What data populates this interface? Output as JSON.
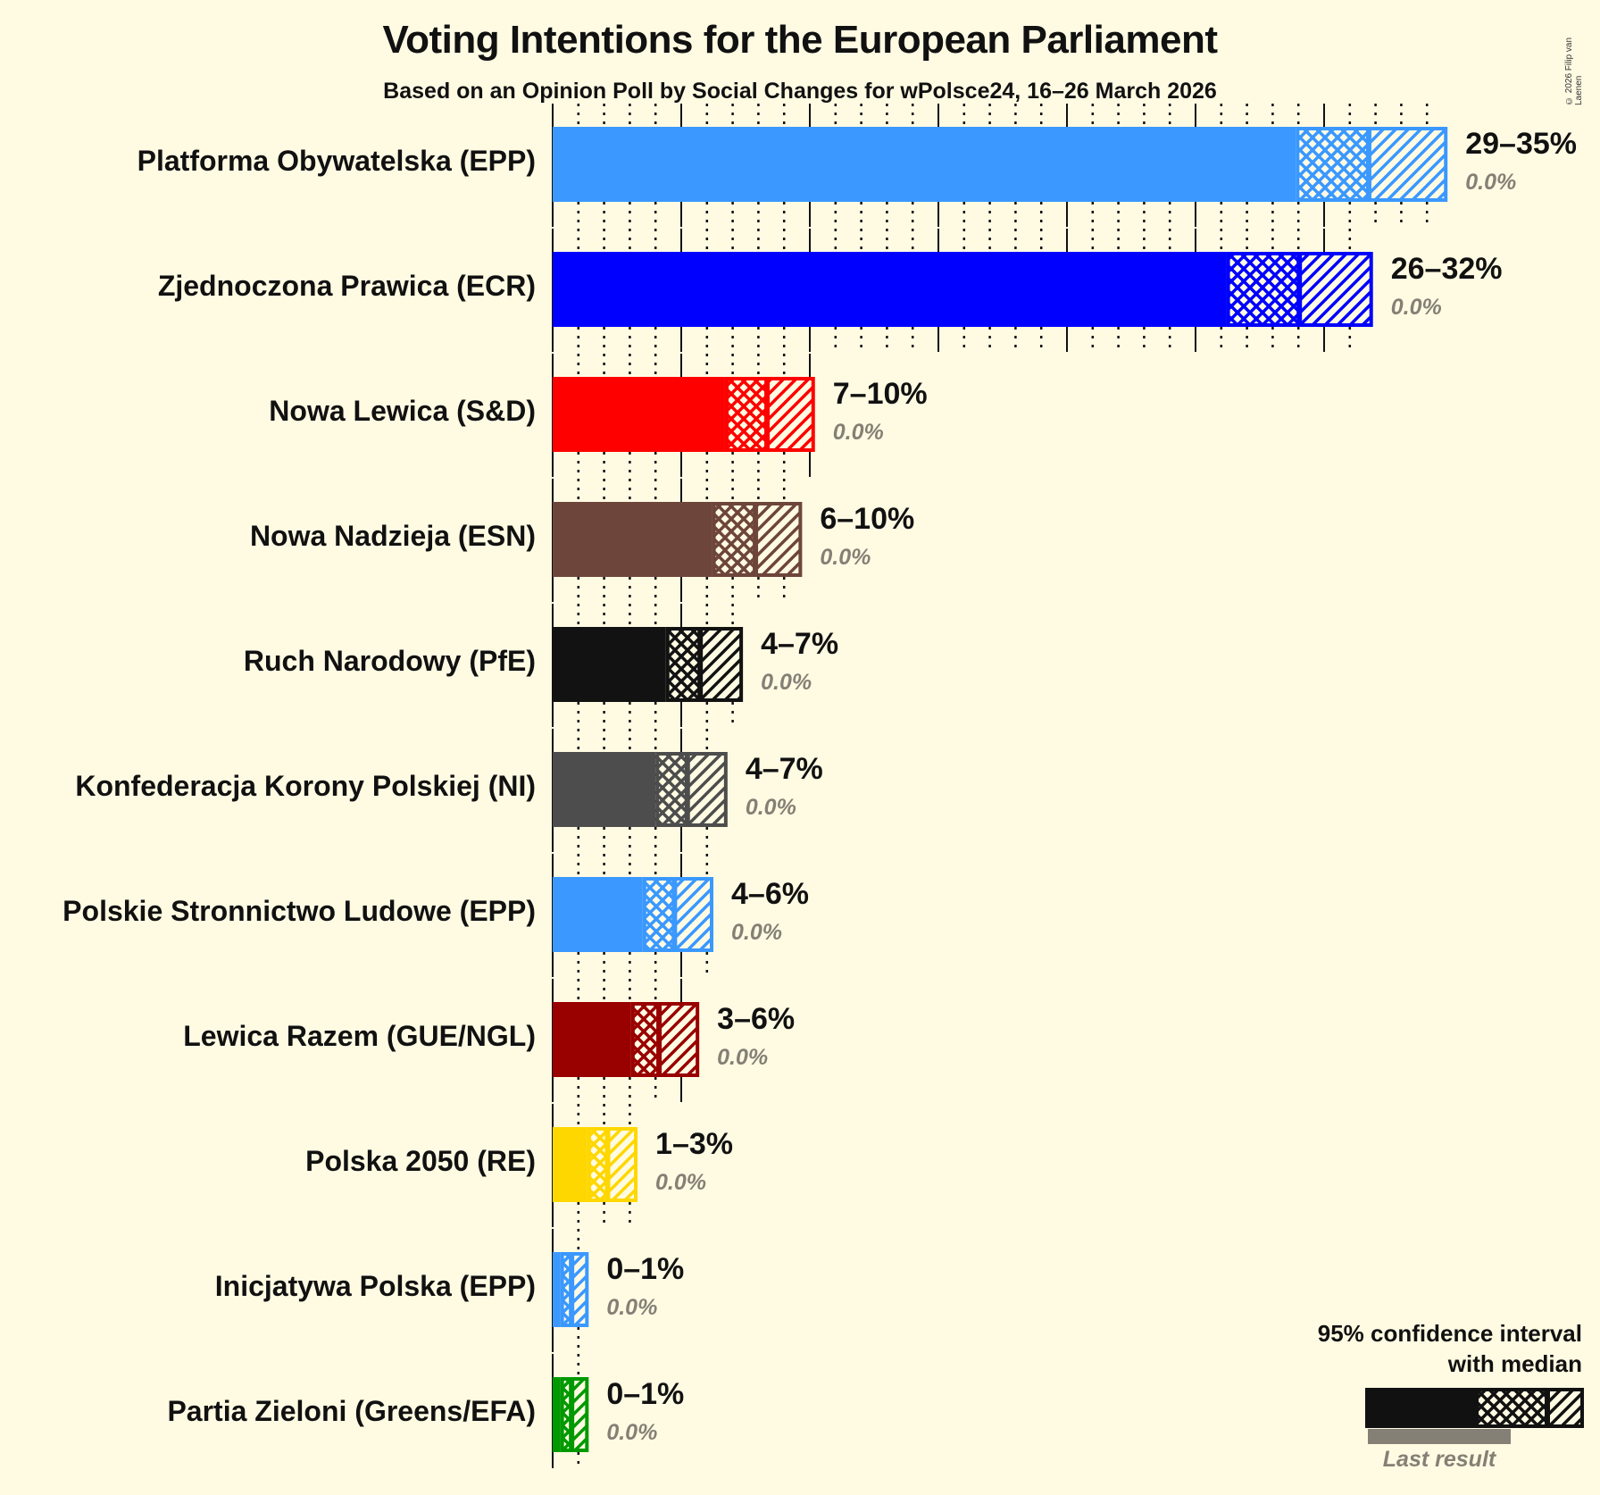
{
  "title": "Voting Intentions for the European Parliament",
  "subtitle": "Based on an Opinion Poll by Social Changes for wPolsce24, 16–26 March 2026",
  "copyright": "© 2026 Filip van Laenen",
  "legend": {
    "title_line1": "95% confidence interval",
    "title_line2": "with median",
    "last_result": "Last result"
  },
  "colors": {
    "background": "#FFFBE3",
    "last_result_bar": "#858075",
    "grid": "#111111"
  },
  "chart_data": {
    "type": "bar",
    "orientation": "horizontal",
    "title": "Voting Intentions for the European Parliament",
    "subtitle": "Based on an Opinion Poll by Social Changes for wPolsce24, 16–26 March 2026",
    "xlabel": "",
    "ylabel": "",
    "xlim": [
      0,
      35
    ],
    "grid": {
      "major_every": 5,
      "minor_every": 1,
      "minor_style": "dotted"
    },
    "legend_position": "bottom-right",
    "categories": [
      "Platforma Obywatelska (EPP)",
      "Zjednoczona Prawica (ECR)",
      "Nowa Lewica (S&D)",
      "Nowa Nadzieja (ESN)",
      "Ruch Narodowy (PfE)",
      "Konfederacja Korony Polskiej (NI)",
      "Polskie Stronnictwo Ludowe (EPP)",
      "Lewica Razem (GUE/NGL)",
      "Polska 2050 (RE)",
      "Inicjatywa Polska (EPP)",
      "Partia Zieloni (Greens/EFA)"
    ],
    "series": [
      {
        "name": "95% CI low",
        "values": [
          28.9,
          26.2,
          6.7,
          6.2,
          4.4,
          4.0,
          3.5,
          3.05,
          1.35,
          0.3,
          0.3
        ]
      },
      {
        "name": "Median",
        "values": [
          31.7,
          29.0,
          8.3,
          7.85,
          5.7,
          5.2,
          4.7,
          4.1,
          2.1,
          0.7,
          0.7
        ]
      },
      {
        "name": "95% CI high",
        "values": [
          34.8,
          31.9,
          10.2,
          9.7,
          7.4,
          6.8,
          6.25,
          5.7,
          3.3,
          1.4,
          1.4
        ]
      },
      {
        "name": "Last result",
        "values": [
          0.0,
          0.0,
          0.0,
          0.0,
          0.0,
          0.0,
          0.0,
          0.0,
          0.0,
          0.0,
          0.0
        ]
      }
    ],
    "range_labels": [
      "29–35%",
      "26–32%",
      "7–10%",
      "6–10%",
      "4–7%",
      "4–7%",
      "4–6%",
      "3–6%",
      "1–3%",
      "0–1%",
      "0–1%"
    ],
    "last_result_labels": [
      "0.0%",
      "0.0%",
      "0.0%",
      "0.0%",
      "0.0%",
      "0.0%",
      "0.0%",
      "0.0%",
      "0.0%",
      "0.0%",
      "0.0%"
    ],
    "bar_colors": [
      "#3A98FF",
      "#0000FF",
      "#FF0000",
      "#6E453A",
      "#121212",
      "#4D4D4D",
      "#3A98FF",
      "#990000",
      "#FFD700",
      "#3A98FF",
      "#009900"
    ]
  }
}
